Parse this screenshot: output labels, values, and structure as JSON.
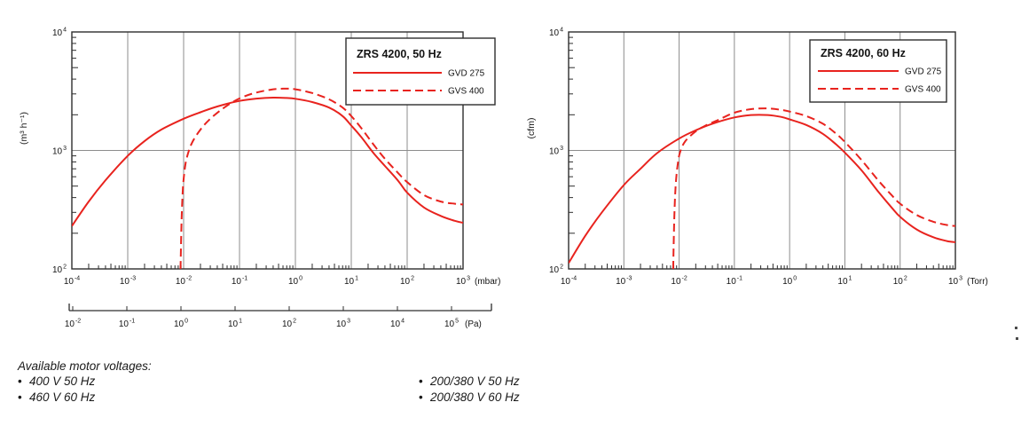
{
  "colors": {
    "curve_red": "#e8231e",
    "grid_gray": "#8c8c8c",
    "axis_dark": "#2d2d2d",
    "text": "#141414"
  },
  "footer": {
    "title": "Available motor voltages:",
    "bullet": "•",
    "col1": [
      "400 V 50 Hz",
      "460 V 60 Hz"
    ],
    "col2": [
      "200/380 V 50 Hz",
      "200/380 V 60 Hz"
    ]
  },
  "chart_data": [
    {
      "type": "line",
      "title": "ZRS 4200, 50 Hz",
      "ylabel": "(m³ h⁻¹)",
      "xunit": "(mbar)",
      "x2unit": "(Pa)",
      "x_range_exp": [
        -4,
        3
      ],
      "y_range_exp": [
        2,
        4
      ],
      "x2_range_exp": [
        -2,
        5
      ],
      "x_tick_exponents": [
        -4,
        -3,
        -2,
        -1,
        0,
        1,
        2,
        3
      ],
      "y_tick_exponents": [
        2,
        3,
        4
      ],
      "x2_tick_exponents": [
        -2,
        -1,
        0,
        1,
        2,
        3,
        4,
        5
      ],
      "grid": true,
      "legend_position": "top-right",
      "legend_entries": [
        {
          "name": "GVD 275",
          "style": "solid"
        },
        {
          "name": "GVS 400",
          "style": "dashed"
        }
      ],
      "series": [
        {
          "name": "GVD 275",
          "style": "solid",
          "points": [
            [
              0.0001,
              230
            ],
            [
              0.0002,
              370
            ],
            [
              0.0004,
              560
            ],
            [
              0.001,
              900
            ],
            [
              0.002,
              1200
            ],
            [
              0.004,
              1500
            ],
            [
              0.01,
              1850
            ],
            [
              0.02,
              2100
            ],
            [
              0.04,
              2350
            ],
            [
              0.1,
              2620
            ],
            [
              0.2,
              2740
            ],
            [
              0.4,
              2790
            ],
            [
              0.7,
              2770
            ],
            [
              1,
              2730
            ],
            [
              2,
              2560
            ],
            [
              4,
              2300
            ],
            [
              7,
              1950
            ],
            [
              10,
              1620
            ],
            [
              15,
              1300
            ],
            [
              25,
              950
            ],
            [
              40,
              740
            ],
            [
              70,
              550
            ],
            [
              100,
              440
            ],
            [
              200,
              330
            ],
            [
              400,
              280
            ],
            [
              700,
              255
            ],
            [
              1000,
              245
            ]
          ]
        },
        {
          "name": "GVS 400",
          "style": "dashed",
          "points": [
            [
              0.0088,
              100
            ],
            [
              0.0092,
              260
            ],
            [
              0.0097,
              480
            ],
            [
              0.0105,
              700
            ],
            [
              0.0115,
              880
            ],
            [
              0.014,
              1150
            ],
            [
              0.02,
              1500
            ],
            [
              0.03,
              1850
            ],
            [
              0.05,
              2250
            ],
            [
              0.08,
              2600
            ],
            [
              0.12,
              2850
            ],
            [
              0.2,
              3080
            ],
            [
              0.35,
              3250
            ],
            [
              0.6,
              3320
            ],
            [
              1,
              3280
            ],
            [
              2,
              3050
            ],
            [
              4,
              2700
            ],
            [
              7,
              2300
            ],
            [
              10,
              1950
            ],
            [
              15,
              1550
            ],
            [
              25,
              1120
            ],
            [
              40,
              850
            ],
            [
              70,
              640
            ],
            [
              100,
              540
            ],
            [
              200,
              420
            ],
            [
              400,
              370
            ],
            [
              700,
              355
            ],
            [
              1000,
              350
            ]
          ]
        }
      ]
    },
    {
      "type": "line",
      "title": "ZRS 4200, 60 Hz",
      "ylabel": "(cfm)",
      "xunit": "(Torr)",
      "x_range_exp": [
        -4,
        3
      ],
      "y_range_exp": [
        2,
        4
      ],
      "x_tick_exponents": [
        -4,
        -3,
        -2,
        -1,
        0,
        1,
        2,
        3
      ],
      "y_tick_exponents": [
        2,
        3,
        4
      ],
      "grid": true,
      "legend_position": "top-right",
      "legend_entries": [
        {
          "name": "GVD 275",
          "style": "solid"
        },
        {
          "name": "GVS 400",
          "style": "dashed"
        }
      ],
      "series": [
        {
          "name": "GVD 275",
          "style": "solid",
          "points": [
            [
              0.0001,
              112
            ],
            [
              0.0002,
              190
            ],
            [
              0.0004,
              300
            ],
            [
              0.001,
              510
            ],
            [
              0.002,
              700
            ],
            [
              0.004,
              950
            ],
            [
              0.01,
              1260
            ],
            [
              0.02,
              1480
            ],
            [
              0.04,
              1680
            ],
            [
              0.1,
              1900
            ],
            [
              0.2,
              1990
            ],
            [
              0.4,
              1990
            ],
            [
              0.7,
              1920
            ],
            [
              1,
              1830
            ],
            [
              2,
              1640
            ],
            [
              4,
              1380
            ],
            [
              7,
              1120
            ],
            [
              10,
              960
            ],
            [
              20,
              680
            ],
            [
              40,
              450
            ],
            [
              70,
              330
            ],
            [
              100,
              275
            ],
            [
              200,
              215
            ],
            [
              400,
              185
            ],
            [
              700,
              172
            ],
            [
              1000,
              168
            ]
          ]
        },
        {
          "name": "GVS 400",
          "style": "dashed",
          "points": [
            [
              0.0078,
              100
            ],
            [
              0.0082,
              280
            ],
            [
              0.0087,
              520
            ],
            [
              0.0095,
              780
            ],
            [
              0.0105,
              980
            ],
            [
              0.013,
              1200
            ],
            [
              0.02,
              1450
            ],
            [
              0.03,
              1620
            ],
            [
              0.05,
              1800
            ],
            [
              0.1,
              2080
            ],
            [
              0.2,
              2230
            ],
            [
              0.4,
              2260
            ],
            [
              0.7,
              2200
            ],
            [
              1,
              2130
            ],
            [
              2,
              1950
            ],
            [
              4,
              1680
            ],
            [
              7,
              1380
            ],
            [
              10,
              1180
            ],
            [
              20,
              830
            ],
            [
              40,
              560
            ],
            [
              70,
              420
            ],
            [
              100,
              355
            ],
            [
              200,
              285
            ],
            [
              400,
              250
            ],
            [
              700,
              235
            ],
            [
              1000,
              230
            ]
          ]
        }
      ]
    }
  ]
}
